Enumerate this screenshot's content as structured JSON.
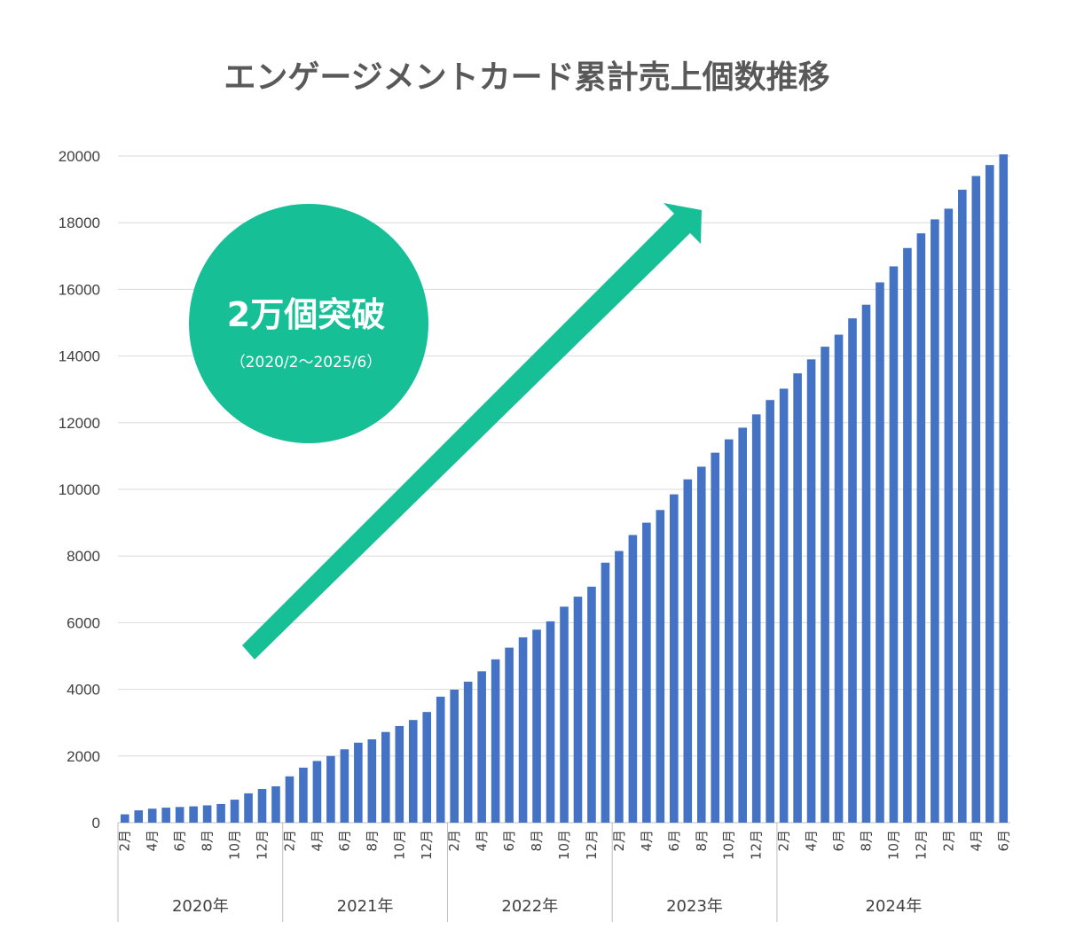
{
  "chart_data": {
    "type": "bar",
    "title": "エンゲージメントカード累計売上個数推移",
    "ylim": [
      0,
      20000
    ],
    "yticks": [
      0,
      2000,
      4000,
      6000,
      8000,
      10000,
      12000,
      14000,
      16000,
      18000,
      20000
    ],
    "grid": true,
    "series_color": "#4472C4",
    "categories": [
      "2月",
      "",
      "4月",
      "",
      "6月",
      "",
      "8月",
      "",
      "10月",
      "",
      "12月",
      "",
      "2月",
      "",
      "4月",
      "",
      "6月",
      "",
      "8月",
      "",
      "10月",
      "",
      "12月",
      "",
      "2月",
      "",
      "4月",
      "",
      "6月",
      "",
      "8月",
      "",
      "10月",
      "",
      "12月",
      "",
      "2月",
      "",
      "4月",
      "",
      "6月",
      "",
      "8月",
      "",
      "10月",
      "",
      "12月",
      "",
      "2月",
      "",
      "4月",
      "",
      "6月",
      "",
      "8月",
      "",
      "10月",
      "",
      "12月",
      "",
      "2月",
      "",
      "4月",
      "",
      "6月"
    ],
    "year_groups": [
      {
        "label": "2020年",
        "count": 12
      },
      {
        "label": "2021年",
        "count": 12
      },
      {
        "label": "2022年",
        "count": 12
      },
      {
        "label": "2023年",
        "count": 12
      },
      {
        "label": "2024年",
        "count": 17
      }
    ],
    "values": [
      250,
      370,
      420,
      450,
      470,
      490,
      520,
      560,
      690,
      880,
      1010,
      1090,
      1390,
      1650,
      1850,
      2000,
      2200,
      2400,
      2500,
      2720,
      2900,
      3080,
      3320,
      3780,
      3990,
      4230,
      4540,
      4900,
      5250,
      5560,
      5790,
      6040,
      6480,
      6780,
      7080,
      7800,
      8150,
      8630,
      9000,
      9380,
      9850,
      10300,
      10680,
      11100,
      11500,
      11850,
      12250,
      12680,
      13020,
      13480,
      13900,
      14280,
      14640,
      15130,
      15540,
      16210,
      16690,
      17240,
      17680,
      18100,
      18420,
      18990,
      19400,
      19730,
      20050
    ]
  },
  "badge": {
    "main": "2万個突破",
    "sub": "（2020/2～2025/6）",
    "color": "#17BF97"
  },
  "arrow": {
    "color": "#17BF97"
  }
}
